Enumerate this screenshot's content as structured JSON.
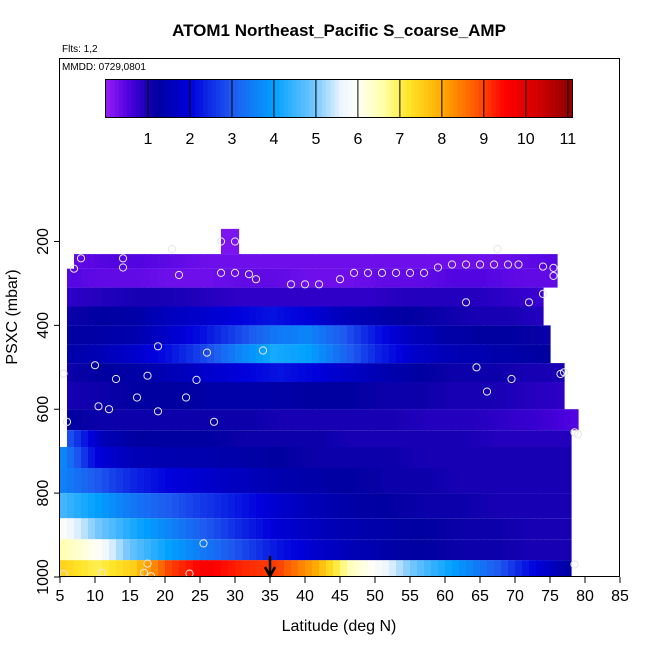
{
  "chart_data": {
    "type": "heatmap",
    "title": "ATOM1 Northeast_Pacific S_coarse_AMP",
    "flights_note": "Flts: 1,2",
    "date_note": "MMDD: 0729,0801",
    "xlabel": "Latitude (deg N)",
    "ylabel": "PSXC (mbar)",
    "xlim": [
      5,
      85
    ],
    "ylim": [
      1000,
      0
    ],
    "x_ticks": [
      "5",
      "10",
      "15",
      "20",
      "25",
      "30",
      "35",
      "40",
      "45",
      "50",
      "55",
      "60",
      "65",
      "70",
      "75",
      "80",
      "85"
    ],
    "y_ticks": [
      "200",
      "400",
      "600",
      "800",
      "1000"
    ],
    "colorbar": {
      "range": [
        0,
        11.1
      ],
      "ticks": [
        "1",
        "2",
        "3",
        "4",
        "5",
        "6",
        "7",
        "8",
        "9",
        "10",
        "11"
      ]
    },
    "marker_latitude": 35,
    "pressure_bands": [
      {
        "p_top": 170,
        "p_bot": 230,
        "lat_start": 28,
        "lat_end": 30.5,
        "values": [
          0.2
        ]
      },
      {
        "p_top": 230,
        "p_bot": 265,
        "lat_start": 7,
        "lat_end": 76,
        "values": [
          0.4,
          0.5,
          0.5,
          0.4,
          0.3,
          0.3,
          0.3,
          0.3,
          0.3,
          0.3,
          0.3,
          0.3,
          0.3,
          0.4,
          0.5
        ]
      },
      {
        "p_top": 265,
        "p_bot": 310,
        "lat_start": 6,
        "lat_end": 76,
        "values": [
          0.5,
          0.4,
          0.4,
          0.3,
          0.3,
          0.4,
          0.4,
          0.3,
          0.3,
          0.4,
          0.4,
          0.5,
          0.5,
          0.4,
          0.4
        ]
      },
      {
        "p_top": 310,
        "p_bot": 355,
        "lat_start": 6,
        "lat_end": 74,
        "values": [
          0.8,
          0.9,
          1.0,
          1.0,
          0.9,
          0.8,
          0.8,
          0.8,
          0.8,
          0.8,
          0.9,
          0.9,
          0.9,
          0.8,
          0.7
        ]
      },
      {
        "p_top": 355,
        "p_bot": 400,
        "lat_start": 6,
        "lat_end": 74,
        "values": [
          1.1,
          1.2,
          1.3,
          1.6,
          1.8,
          2.0,
          2.2,
          2.0,
          1.6,
          1.4,
          1.2,
          1.1,
          1.0,
          1.0,
          0.9
        ]
      },
      {
        "p_top": 400,
        "p_bot": 445,
        "lat_start": 6,
        "lat_end": 75,
        "values": [
          1.2,
          1.3,
          1.4,
          1.8,
          2.2,
          2.8,
          3.4,
          3.6,
          3.0,
          2.2,
          1.6,
          1.3,
          1.2,
          1.2,
          1.1
        ]
      },
      {
        "p_top": 445,
        "p_bot": 490,
        "lat_start": 6,
        "lat_end": 75,
        "values": [
          1.3,
          1.5,
          1.8,
          2.2,
          2.8,
          3.6,
          4.2,
          4.0,
          3.2,
          2.4,
          1.8,
          1.5,
          1.4,
          1.3,
          1.2
        ]
      },
      {
        "p_top": 490,
        "p_bot": 535,
        "lat_start": 6,
        "lat_end": 77,
        "values": [
          1.1,
          1.2,
          1.3,
          1.5,
          1.8,
          2.0,
          2.2,
          2.0,
          1.7,
          1.4,
          1.2,
          1.1,
          1.1,
          1.0,
          1.0
        ]
      },
      {
        "p_top": 535,
        "p_bot": 600,
        "lat_start": 6,
        "lat_end": 77,
        "values": [
          1.0,
          1.1,
          1.2,
          1.2,
          1.3,
          1.3,
          1.3,
          1.2,
          1.2,
          1.1,
          1.1,
          1.0,
          1.0,
          0.9,
          0.8
        ]
      },
      {
        "p_top": 600,
        "p_bot": 650,
        "lat_start": 6,
        "lat_end": 79,
        "values": [
          1.2,
          1.1,
          1.1,
          1.1,
          1.1,
          1.1,
          1.0,
          1.0,
          1.0,
          1.0,
          0.9,
          0.9,
          0.8,
          0.7,
          0.5
        ]
      },
      {
        "p_top": 650,
        "p_bot": 690,
        "lat_start": 6,
        "lat_end": 78,
        "values": [
          3.0,
          1.5,
          1.2,
          1.2,
          1.2,
          1.1,
          1.1,
          1.1,
          1.0,
          1.0,
          1.0,
          1.0,
          0.9,
          0.9,
          0.9
        ]
      },
      {
        "p_top": 690,
        "p_bot": 740,
        "lat_start": 5,
        "lat_end": 78,
        "values": [
          3.8,
          2.0,
          1.5,
          1.4,
          1.4,
          1.3,
          1.2,
          1.1,
          1.1,
          1.1,
          1.0,
          1.0,
          1.0,
          1.0,
          1.0
        ]
      },
      {
        "p_top": 740,
        "p_bot": 800,
        "lat_start": 5,
        "lat_end": 78,
        "values": [
          3.6,
          3.0,
          2.4,
          2.0,
          1.8,
          1.6,
          1.4,
          1.3,
          1.2,
          1.1,
          1.1,
          1.0,
          1.0,
          1.0,
          1.0
        ]
      },
      {
        "p_top": 800,
        "p_bot": 860,
        "lat_start": 5,
        "lat_end": 78,
        "values": [
          4.6,
          4.0,
          3.4,
          3.0,
          2.6,
          2.2,
          1.8,
          1.5,
          1.3,
          1.2,
          1.1,
          1.1,
          1.0,
          1.0,
          1.0
        ]
      },
      {
        "p_top": 860,
        "p_bot": 910,
        "lat_start": 5,
        "lat_end": 78,
        "values": [
          6.0,
          5.0,
          4.2,
          3.6,
          3.0,
          2.4,
          1.9,
          1.6,
          1.4,
          1.3,
          1.2,
          1.1,
          1.1,
          1.0,
          1.0
        ]
      },
      {
        "p_top": 910,
        "p_bot": 960,
        "lat_start": 5,
        "lat_end": 78,
        "values": [
          6.6,
          6.0,
          4.8,
          4.0,
          3.4,
          2.8,
          2.2,
          1.8,
          1.5,
          1.3,
          1.2,
          1.1,
          1.1,
          1.0,
          1.0
        ]
      },
      {
        "p_top": 960,
        "p_bot": 1010,
        "lat_start": 5,
        "lat_end": 78,
        "values": [
          7.5,
          7.0,
          7.5,
          9.0,
          9.6,
          9.2,
          9.0,
          8.0,
          6.4,
          5.6,
          4.6,
          3.8,
          3.0,
          2.0,
          1.2
        ]
      }
    ],
    "sample_points": [
      [
        8,
        240
      ],
      [
        7,
        265
      ],
      [
        14,
        240
      ],
      [
        14,
        262
      ],
      [
        21,
        218
      ],
      [
        22,
        280
      ],
      [
        28,
        200
      ],
      [
        30,
        200
      ],
      [
        28,
        275
      ],
      [
        30,
        275
      ],
      [
        32,
        278
      ],
      [
        33,
        290
      ],
      [
        38,
        302
      ],
      [
        40,
        302
      ],
      [
        42,
        302
      ],
      [
        45,
        290
      ],
      [
        47,
        275
      ],
      [
        49,
        275
      ],
      [
        51,
        275
      ],
      [
        53,
        275
      ],
      [
        55,
        275
      ],
      [
        57,
        275
      ],
      [
        59,
        262
      ],
      [
        61,
        255
      ],
      [
        63,
        255
      ],
      [
        65,
        255
      ],
      [
        67,
        255
      ],
      [
        69,
        255
      ],
      [
        70.5,
        255
      ],
      [
        67.5,
        218
      ],
      [
        74,
        260
      ],
      [
        75.5,
        263
      ],
      [
        75.5,
        282
      ],
      [
        74,
        325
      ],
      [
        72,
        345
      ],
      [
        63,
        345
      ],
      [
        19,
        450
      ],
      [
        26,
        465
      ],
      [
        34,
        460
      ],
      [
        10,
        495
      ],
      [
        5.5,
        515
      ],
      [
        13,
        528
      ],
      [
        17.5,
        520
      ],
      [
        24.5,
        530
      ],
      [
        16,
        572
      ],
      [
        23,
        572
      ],
      [
        10.5,
        593
      ],
      [
        12,
        600
      ],
      [
        19,
        605
      ],
      [
        27,
        630
      ],
      [
        6,
        630
      ],
      [
        64.5,
        500
      ],
      [
        66,
        558
      ],
      [
        69.5,
        528
      ],
      [
        76.5,
        516
      ],
      [
        77,
        512
      ],
      [
        78.5,
        655
      ],
      [
        79,
        660
      ],
      [
        25.5,
        920
      ],
      [
        17.5,
        968
      ],
      [
        17,
        990
      ],
      [
        18,
        998
      ],
      [
        11,
        990
      ],
      [
        23.5,
        992
      ],
      [
        5.5,
        993
      ],
      [
        78.5,
        970
      ]
    ]
  }
}
